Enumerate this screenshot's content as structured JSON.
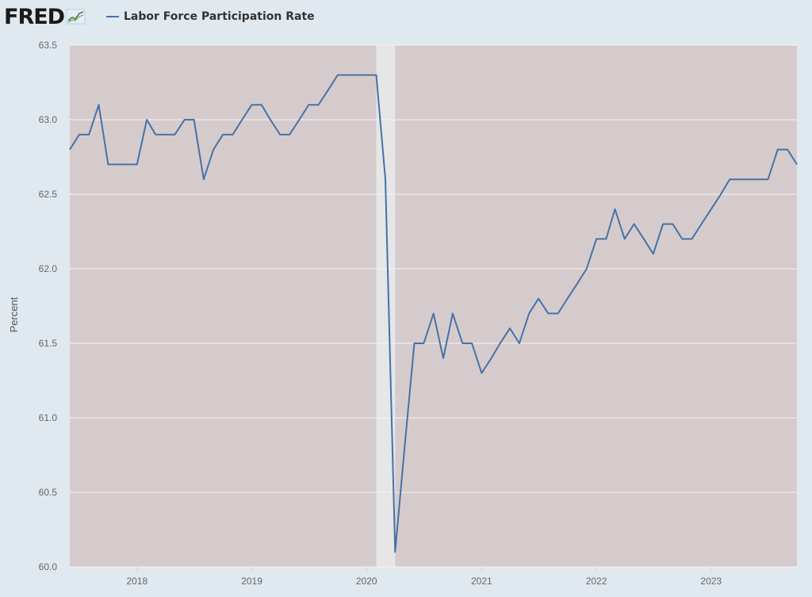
{
  "header": {
    "logo_text": "FRED",
    "logo_icon": "fred-chart-mark",
    "legend_label": "Labor Force Participation Rate"
  },
  "colors": {
    "page_bg": "#e1e9f0",
    "plot_bg": "#d6cbcc",
    "recession_band": "#e6e6e6",
    "line": "#4572a7",
    "grid": "#f3f3f3",
    "tick_text": "#666666"
  },
  "chart_data": {
    "type": "line",
    "title": "",
    "xlabel": "",
    "ylabel": "Percent",
    "ylim": [
      60.0,
      63.5
    ],
    "xlim": [
      "2017-06-01",
      "2023-10-01"
    ],
    "yticks": [
      "60.0",
      "60.5",
      "61.0",
      "61.5",
      "62.0",
      "62.5",
      "63.0",
      "63.5"
    ],
    "xticks": [
      {
        "label": "2018",
        "date": "2018-01-01"
      },
      {
        "label": "2019",
        "date": "2019-01-01"
      },
      {
        "label": "2020",
        "date": "2020-01-01"
      },
      {
        "label": "2021",
        "date": "2021-01-01"
      },
      {
        "label": "2022",
        "date": "2022-01-01"
      },
      {
        "label": "2023",
        "date": "2023-01-01"
      }
    ],
    "grid": true,
    "legend_position": "top-left",
    "recession": {
      "start": "2020-02-01",
      "end": "2020-04-01"
    },
    "series": [
      {
        "name": "Labor Force Participation Rate",
        "points": [
          [
            "2017-06-01",
            62.8
          ],
          [
            "2017-07-01",
            62.9
          ],
          [
            "2017-08-01",
            62.9
          ],
          [
            "2017-09-01",
            63.1
          ],
          [
            "2017-10-01",
            62.7
          ],
          [
            "2017-11-01",
            62.7
          ],
          [
            "2017-12-01",
            62.7
          ],
          [
            "2018-01-01",
            62.7
          ],
          [
            "2018-02-01",
            63.0
          ],
          [
            "2018-03-01",
            62.9
          ],
          [
            "2018-04-01",
            62.9
          ],
          [
            "2018-05-01",
            62.9
          ],
          [
            "2018-06-01",
            63.0
          ],
          [
            "2018-07-01",
            63.0
          ],
          [
            "2018-08-01",
            62.6
          ],
          [
            "2018-09-01",
            62.8
          ],
          [
            "2018-10-01",
            62.9
          ],
          [
            "2018-11-01",
            62.9
          ],
          [
            "2018-12-01",
            63.0
          ],
          [
            "2019-01-01",
            63.1
          ],
          [
            "2019-02-01",
            63.1
          ],
          [
            "2019-03-01",
            63.0
          ],
          [
            "2019-04-01",
            62.9
          ],
          [
            "2019-05-01",
            62.9
          ],
          [
            "2019-06-01",
            63.0
          ],
          [
            "2019-07-01",
            63.1
          ],
          [
            "2019-08-01",
            63.1
          ],
          [
            "2019-09-01",
            63.2
          ],
          [
            "2019-10-01",
            63.3
          ],
          [
            "2019-11-01",
            63.3
          ],
          [
            "2019-12-01",
            63.3
          ],
          [
            "2020-01-01",
            63.3
          ],
          [
            "2020-02-01",
            63.3
          ],
          [
            "2020-03-01",
            62.6
          ],
          [
            "2020-04-01",
            60.1
          ],
          [
            "2020-05-01",
            60.8
          ],
          [
            "2020-06-01",
            61.5
          ],
          [
            "2020-07-01",
            61.5
          ],
          [
            "2020-08-01",
            61.7
          ],
          [
            "2020-09-01",
            61.4
          ],
          [
            "2020-10-01",
            61.7
          ],
          [
            "2020-11-01",
            61.5
          ],
          [
            "2020-12-01",
            61.5
          ],
          [
            "2021-01-01",
            61.3
          ],
          [
            "2021-02-01",
            61.4
          ],
          [
            "2021-03-01",
            61.5
          ],
          [
            "2021-04-01",
            61.6
          ],
          [
            "2021-05-01",
            61.5
          ],
          [
            "2021-06-01",
            61.7
          ],
          [
            "2021-07-01",
            61.8
          ],
          [
            "2021-08-01",
            61.7
          ],
          [
            "2021-09-01",
            61.7
          ],
          [
            "2021-10-01",
            61.8
          ],
          [
            "2021-11-01",
            61.9
          ],
          [
            "2021-12-01",
            62.0
          ],
          [
            "2022-01-01",
            62.2
          ],
          [
            "2022-02-01",
            62.2
          ],
          [
            "2022-03-01",
            62.4
          ],
          [
            "2022-04-01",
            62.2
          ],
          [
            "2022-05-01",
            62.3
          ],
          [
            "2022-06-01",
            62.2
          ],
          [
            "2022-07-01",
            62.1
          ],
          [
            "2022-08-01",
            62.3
          ],
          [
            "2022-09-01",
            62.3
          ],
          [
            "2022-10-01",
            62.2
          ],
          [
            "2022-11-01",
            62.2
          ],
          [
            "2022-12-01",
            62.3
          ],
          [
            "2023-01-01",
            62.4
          ],
          [
            "2023-02-01",
            62.5
          ],
          [
            "2023-03-01",
            62.6
          ],
          [
            "2023-04-01",
            62.6
          ],
          [
            "2023-05-01",
            62.6
          ],
          [
            "2023-06-01",
            62.6
          ],
          [
            "2023-07-01",
            62.6
          ],
          [
            "2023-08-01",
            62.8
          ],
          [
            "2023-09-01",
            62.8
          ],
          [
            "2023-10-01",
            62.7
          ]
        ]
      }
    ]
  }
}
